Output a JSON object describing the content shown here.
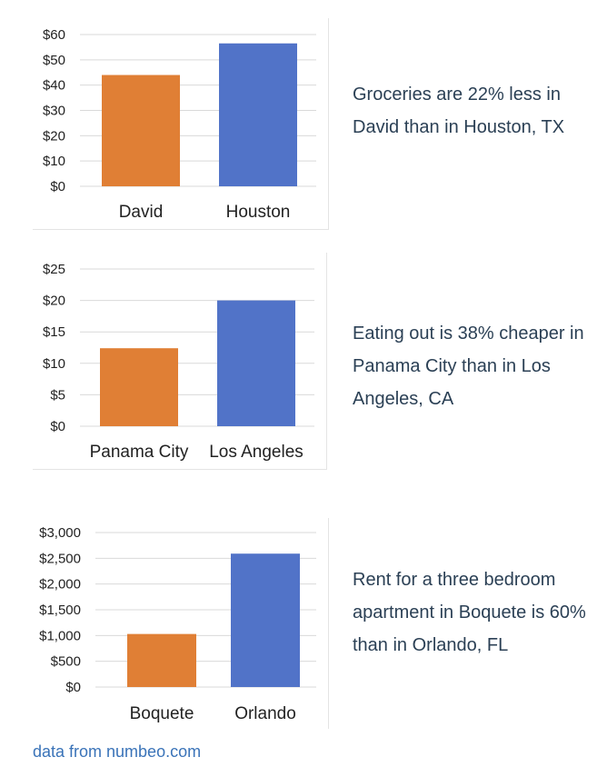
{
  "colors": {
    "orange": "#e07f35",
    "blue": "#5173c8",
    "grid": "#d9d9d9",
    "text": "#222222"
  },
  "panels": [
    {
      "caption": "Groceries are 22% less in David than in Houston, TX",
      "chart_data": {
        "type": "bar",
        "categories": [
          "David",
          "Houston"
        ],
        "values": [
          44,
          56.5
        ],
        "ylim": [
          0,
          60
        ],
        "yticks": [
          0,
          10,
          20,
          30,
          40,
          50,
          60
        ],
        "ytick_labels": [
          "$0",
          "$10",
          "$20",
          "$30",
          "$40",
          "$50",
          "$60"
        ],
        "grid": true,
        "bar_colors": [
          "#e07f35",
          "#5173c8"
        ]
      }
    },
    {
      "caption": "Eating out is 38% cheaper in Panama City than in Los Angeles, CA",
      "chart_data": {
        "type": "bar",
        "categories": [
          "Panama City",
          "Los Angeles"
        ],
        "values": [
          12.4,
          20
        ],
        "ylim": [
          0,
          25
        ],
        "yticks": [
          0,
          5,
          10,
          15,
          20,
          25
        ],
        "ytick_labels": [
          "$0",
          "$5",
          "$10",
          "$15",
          "$20",
          "$25"
        ],
        "grid": true,
        "bar_colors": [
          "#e07f35",
          "#5173c8"
        ]
      }
    },
    {
      "caption": "Rent for a three bedroom apartment in Boquete is 60% than in Orlando, FL",
      "chart_data": {
        "type": "bar",
        "categories": [
          "Boquete",
          "Orlando"
        ],
        "values": [
          1030,
          2590
        ],
        "ylim": [
          0,
          3000
        ],
        "yticks": [
          0,
          500,
          1000,
          1500,
          2000,
          2500,
          3000
        ],
        "ytick_labels": [
          "$0",
          "$500",
          "$1,000",
          "$1,500",
          "$2,000",
          "$2,500",
          "$3,000"
        ],
        "grid": true,
        "bar_colors": [
          "#e07f35",
          "#5173c8"
        ]
      }
    }
  ],
  "source": "data from numbeo.com"
}
